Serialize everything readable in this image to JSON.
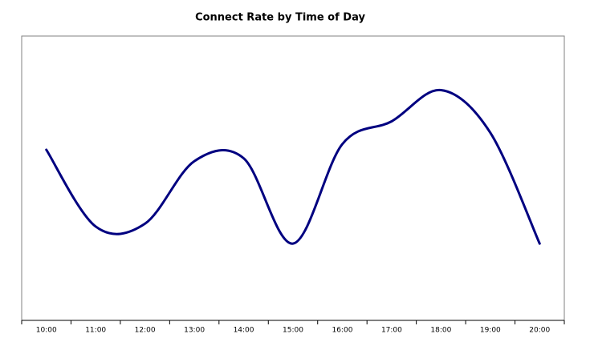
{
  "chart_data": {
    "type": "line",
    "title": "Connect Rate by Time of Day",
    "categories": [
      "10:00",
      "11:00",
      "12:00",
      "13:00",
      "14:00",
      "15:00",
      "16:00",
      "17:00",
      "18:00",
      "19:00",
      "20:00"
    ],
    "values": [
      60,
      33,
      34,
      56,
      57,
      27,
      62,
      70,
      81,
      66,
      27
    ],
    "color": "#000080",
    "smooth": true,
    "ylim": [
      0,
      100
    ]
  }
}
